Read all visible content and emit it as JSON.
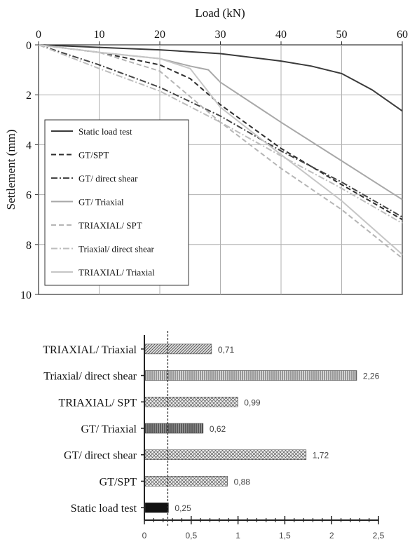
{
  "chart_data": [
    {
      "type": "line",
      "title": "",
      "xlabel": "Load (kN)",
      "ylabel": "Settlement (mm)",
      "xlim": [
        0,
        60
      ],
      "ylim": [
        0,
        10
      ],
      "y_inverted": true,
      "x_axis_position": "top",
      "x_ticks": [
        0,
        10,
        20,
        30,
        40,
        50,
        60
      ],
      "x_tick_labels": [
        "0",
        "10",
        "20",
        "30",
        "40",
        "50",
        "60"
      ],
      "y_ticks": [
        0,
        2,
        4,
        6,
        8,
        10
      ],
      "y_tick_labels": [
        "0",
        "2",
        "4",
        "6",
        "8",
        "10"
      ],
      "grid": true,
      "legend_position": "bottom-left",
      "series": [
        {
          "name": "Static load test",
          "color": "#3a3a3a",
          "dash": "solid",
          "x": [
            0,
            10,
            20,
            30,
            40,
            45,
            50,
            55,
            60
          ],
          "y": [
            0,
            0.1,
            0.2,
            0.35,
            0.65,
            0.85,
            1.15,
            1.8,
            2.65
          ]
        },
        {
          "name": "GT/SPT",
          "color": "#2e2e2e",
          "dash": "dash",
          "x": [
            0,
            10,
            20,
            25,
            30,
            40,
            50,
            60
          ],
          "y": [
            0,
            0.3,
            0.8,
            1.35,
            2.4,
            4.15,
            5.6,
            7.0
          ]
        },
        {
          "name": "GT/ direct shear",
          "color": "#444444",
          "dash": "dashdot",
          "x": [
            0,
            10,
            20,
            30,
            40,
            50,
            60
          ],
          "y": [
            0,
            0.8,
            1.7,
            2.85,
            4.25,
            5.5,
            6.9
          ]
        },
        {
          "name": "GT/ Triaxial",
          "color": "#a8a8a8",
          "dash": "solid",
          "x": [
            0,
            10,
            20,
            25,
            28,
            30,
            40,
            50,
            60
          ],
          "y": [
            0,
            0.3,
            0.55,
            0.85,
            1.0,
            1.5,
            3.1,
            4.65,
            6.2
          ]
        },
        {
          "name": "TRIAXIAL/ SPT",
          "color": "#b5b5b5",
          "dash": "dash",
          "x": [
            0,
            10,
            20,
            30,
            40,
            50,
            60
          ],
          "y": [
            0,
            0.3,
            1.05,
            3.1,
            4.95,
            6.6,
            8.55
          ]
        },
        {
          "name": "Triaxial/ direct shear",
          "color": "#bdbdbd",
          "dash": "dashdot",
          "x": [
            0,
            10,
            20,
            30,
            40,
            50,
            60
          ],
          "y": [
            0,
            0.95,
            1.85,
            3.1,
            4.45,
            5.75,
            7.15
          ]
        },
        {
          "name": "TRIAXIAL/ Triaxial",
          "color": "#c6c6c6",
          "dash": "solid",
          "x": [
            0,
            10,
            20,
            25,
            30,
            40,
            50,
            60
          ],
          "y": [
            0,
            0.3,
            0.55,
            0.95,
            2.5,
            4.4,
            6.25,
            8.4
          ]
        }
      ]
    },
    {
      "type": "bar",
      "orientation": "horizontal",
      "title": "",
      "xlabel": "",
      "ylabel": "",
      "xlim": [
        0,
        2.5
      ],
      "x_ticks": [
        0,
        0.5,
        1,
        1.5,
        2,
        2.5
      ],
      "x_tick_labels": [
        "0",
        "0,5",
        "1",
        "1,5",
        "2",
        "2,5"
      ],
      "reference_line": 0.25,
      "categories": [
        "TRIAXIAL/ Triaxial",
        "Triaxial/ direct shear",
        "TRIAXIAL/ SPT",
        "GT/ Triaxial",
        "GT/ direct shear",
        "GT/SPT",
        "Static load test"
      ],
      "values": [
        0.71,
        2.26,
        0.99,
        0.62,
        1.72,
        0.88,
        0.25
      ],
      "value_labels": [
        "0,71",
        "2,26",
        "0,99",
        "0,62",
        "1,72",
        "0,88",
        "0,25"
      ],
      "patterns": [
        "diagonal",
        "vertical",
        "cross",
        "dark-vertical",
        "cross",
        "cross",
        "solid"
      ]
    }
  ]
}
